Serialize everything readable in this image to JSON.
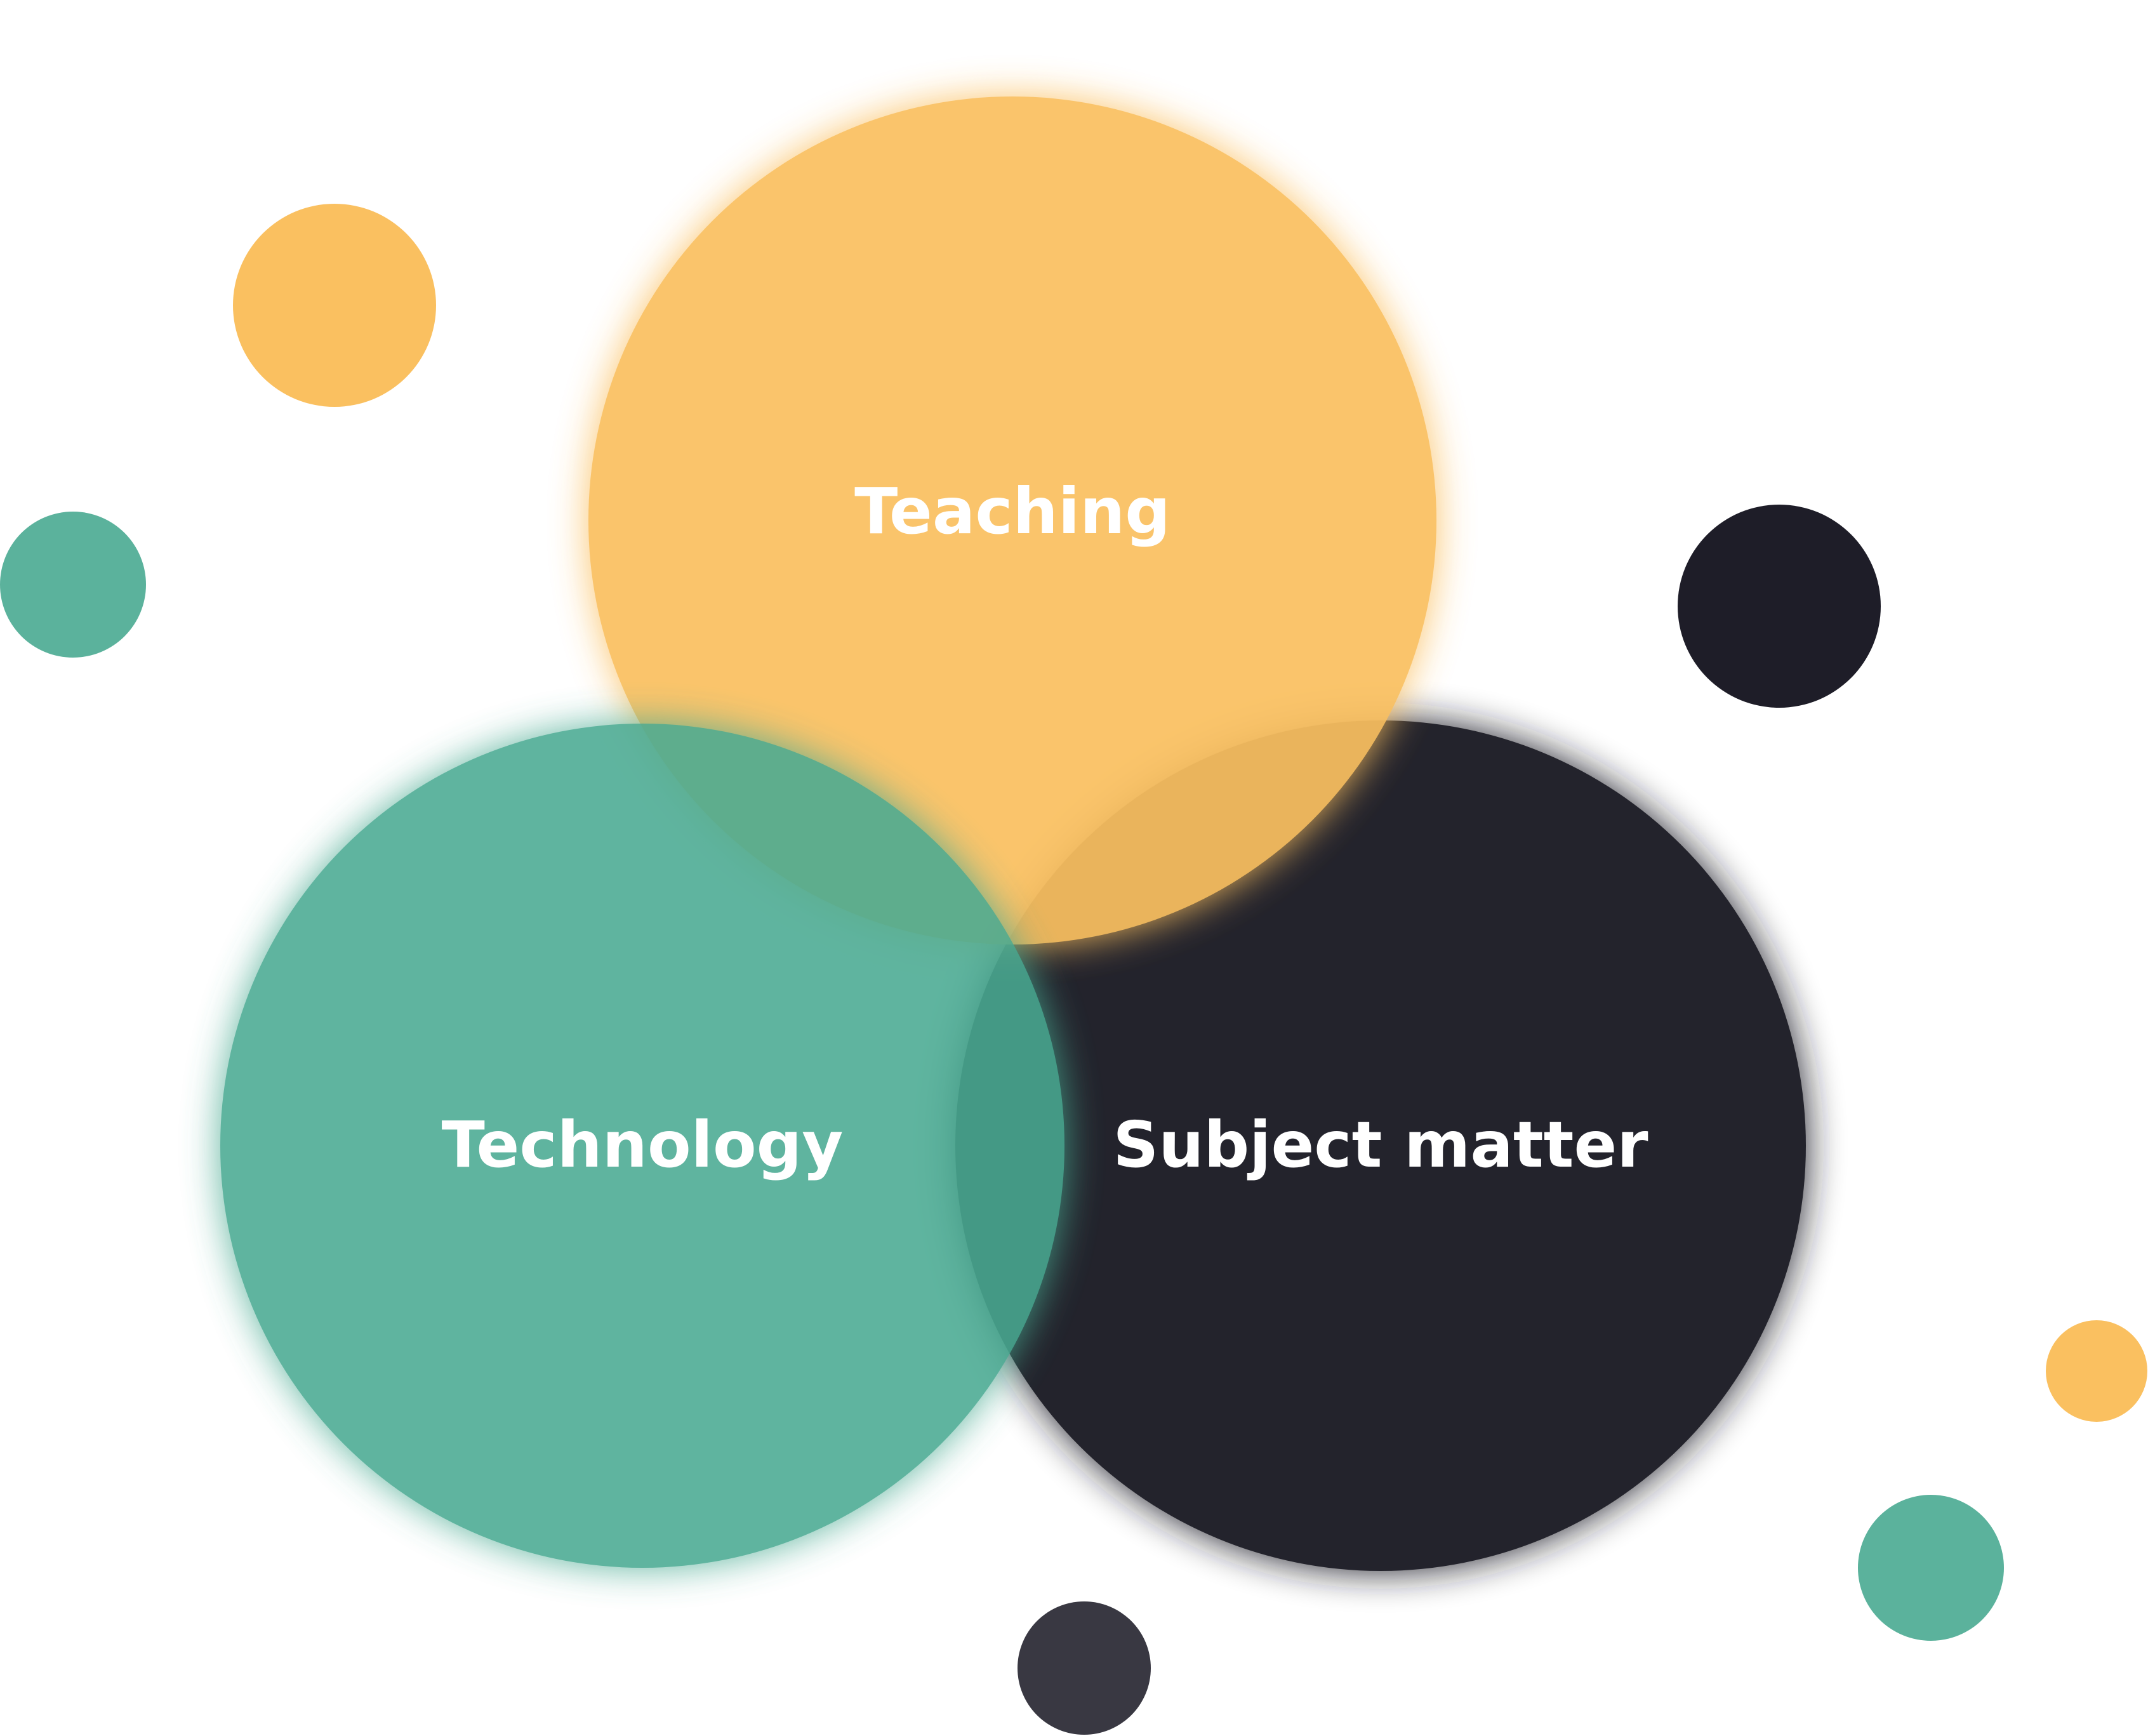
{
  "diagram": {
    "type": "venn",
    "sets": [
      {
        "id": "teaching",
        "label": "Teaching",
        "color": "#FAC060"
      },
      {
        "id": "technology",
        "label": "Technology",
        "color": "#48AA92"
      },
      {
        "id": "subject-matter",
        "label": "Subject matter",
        "color": "#1E1D28"
      }
    ],
    "decorative_dots": [
      {
        "color": "#FAC060"
      },
      {
        "color": "#5BB29C"
      },
      {
        "color": "#1E1D28"
      },
      {
        "color": "#FAC060"
      },
      {
        "color": "#5BB29C"
      },
      {
        "color": "#393842"
      }
    ]
  }
}
